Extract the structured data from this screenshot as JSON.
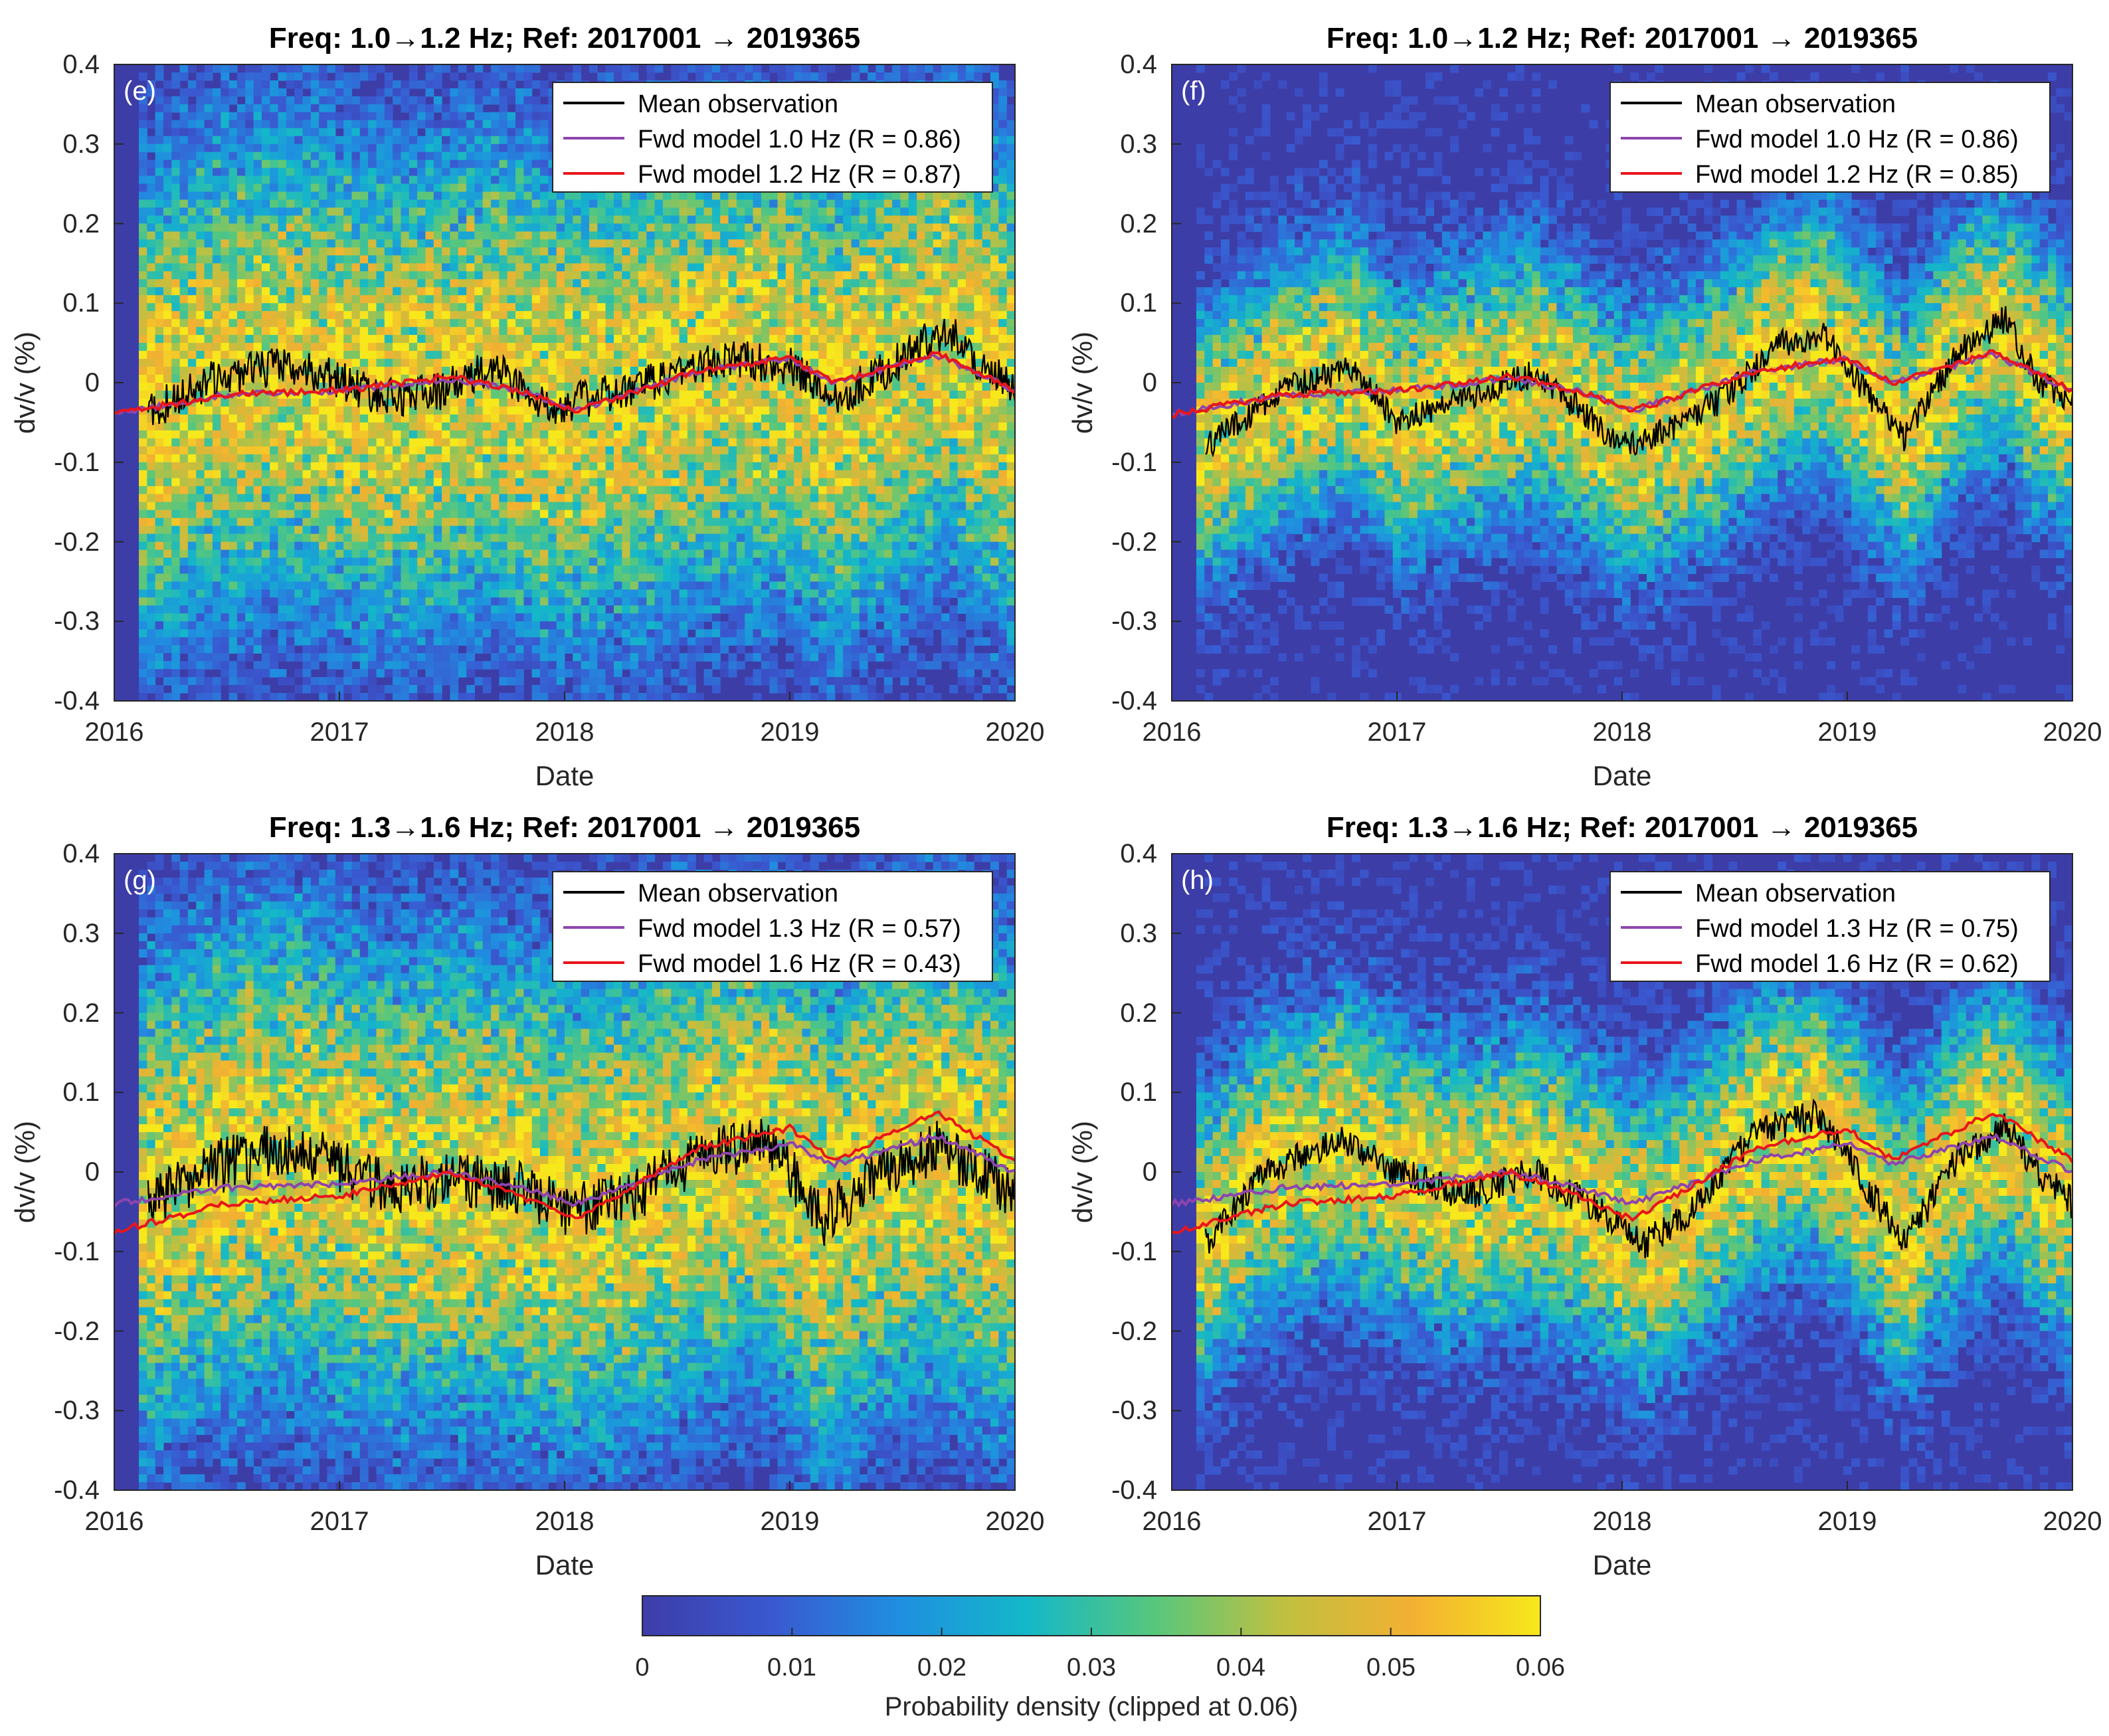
{
  "panels": [
    {
      "id": "e",
      "label": "(e)",
      "title": "Freq: 1.0→1.2 Hz; Ref: 2017001 → 2019365",
      "xlabel": "Date",
      "ylabel": "dv/v (%)",
      "legend": [
        {
          "label": "Mean observation",
          "color": "#000000"
        },
        {
          "label": "Fwd model 1.0 Hz (R = 0.86)",
          "color": "#8e44ad"
        },
        {
          "label": "Fwd model 1.2 Hz (R = 0.87)",
          "color": "#e8151b"
        }
      ]
    },
    {
      "id": "f",
      "label": "(f)",
      "title": "Freq: 1.0→1.2 Hz; Ref: 2017001 → 2019365",
      "xlabel": "Date",
      "ylabel": "dv/v (%)",
      "legend": [
        {
          "label": "Mean observation",
          "color": "#000000"
        },
        {
          "label": "Fwd model 1.0 Hz (R = 0.86)",
          "color": "#8e44ad"
        },
        {
          "label": "Fwd model 1.2 Hz (R = 0.85)",
          "color": "#e8151b"
        }
      ]
    },
    {
      "id": "g",
      "label": "(g)",
      "title": "Freq: 1.3→1.6 Hz; Ref: 2017001 → 2019365",
      "xlabel": "Date",
      "ylabel": "dv/v (%)",
      "legend": [
        {
          "label": "Mean observation",
          "color": "#000000"
        },
        {
          "label": "Fwd model 1.3 Hz (R = 0.57)",
          "color": "#8e44ad"
        },
        {
          "label": "Fwd model 1.6 Hz (R = 0.43)",
          "color": "#e8151b"
        }
      ]
    },
    {
      "id": "h",
      "label": "(h)",
      "title": "Freq: 1.3→1.6 Hz; Ref: 2017001 → 2019365",
      "xlabel": "Date",
      "ylabel": "dv/v (%)",
      "legend": [
        {
          "label": "Mean observation",
          "color": "#000000"
        },
        {
          "label": "Fwd model 1.3 Hz (R = 0.75)",
          "color": "#8e44ad"
        },
        {
          "label": "Fwd model 1.6 Hz (R = 0.62)",
          "color": "#e8151b"
        }
      ]
    }
  ],
  "colorbar": {
    "label": "Probability density (clipped at 0.06)",
    "ticks": [
      "0",
      "0.01",
      "0.02",
      "0.03",
      "0.04",
      "0.05",
      "0.06"
    ],
    "range": [
      0,
      0.06
    ],
    "colors": [
      "#3d3da8",
      "#3a58d0",
      "#1f8fe0",
      "#14b8c8",
      "#58c77c",
      "#c0c040",
      "#f3b032",
      "#f7e81c"
    ]
  },
  "chart_data": [
    {
      "type": "heatmap",
      "panel": "e",
      "xticks": [
        "2016",
        "2017",
        "2018",
        "2019",
        "2020"
      ],
      "xlim": [
        2016,
        2020
      ],
      "yticks": [
        "0.4",
        "0.3",
        "0.2",
        "0.1",
        "0",
        "-0.1",
        "-0.2",
        "-0.3",
        "-0.4"
      ],
      "ylim": [
        -0.4,
        0.4
      ],
      "density_spread": 0.2,
      "noise": 0.025,
      "series": [
        {
          "name": "Mean observation",
          "kind": "obs",
          "t": [
            2016.15,
            2016.4,
            2016.7,
            2016.95,
            2017.2,
            2017.45,
            2017.7,
            2017.9,
            2018.1,
            2018.3,
            2018.55,
            2018.8,
            2019.0,
            2019.2,
            2019.45,
            2019.7,
            2019.85,
            2020.0
          ],
          "v": [
            -0.04,
            0.0,
            0.02,
            0.01,
            -0.02,
            -0.01,
            0.02,
            -0.03,
            -0.02,
            -0.01,
            0.02,
            0.03,
            0.02,
            -0.02,
            0.02,
            0.07,
            0.02,
            -0.01
          ]
        },
        {
          "name": "Fwd model 1.0 Hz",
          "kind": "model",
          "t": [
            2016.0,
            2016.5,
            2017.0,
            2017.5,
            2017.8,
            2018.05,
            2018.6,
            2019.0,
            2019.2,
            2019.65,
            2020.0
          ],
          "v": [
            -0.04,
            -0.015,
            -0.01,
            0.005,
            -0.01,
            -0.035,
            0.015,
            0.03,
            0.0,
            0.035,
            -0.01
          ]
        },
        {
          "name": "Fwd model 1.2 Hz",
          "kind": "model",
          "t": [
            2016.0,
            2016.5,
            2017.0,
            2017.5,
            2017.8,
            2018.05,
            2018.6,
            2019.0,
            2019.2,
            2019.65,
            2020.0
          ],
          "v": [
            -0.04,
            -0.015,
            -0.01,
            0.008,
            -0.01,
            -0.035,
            0.015,
            0.03,
            0.0,
            0.038,
            -0.01
          ]
        }
      ]
    },
    {
      "type": "heatmap",
      "panel": "f",
      "xticks": [
        "2016",
        "2017",
        "2018",
        "2019",
        "2020"
      ],
      "xlim": [
        2016,
        2020
      ],
      "yticks": [
        "0.4",
        "0.3",
        "0.2",
        "0.1",
        "0",
        "-0.1",
        "-0.2",
        "-0.3",
        "-0.4"
      ],
      "ylim": [
        -0.4,
        0.4
      ],
      "density_spread": 0.11,
      "noise": 0.018,
      "series": [
        {
          "name": "Mean observation",
          "kind": "obs",
          "t": [
            2016.15,
            2016.5,
            2016.8,
            2017.0,
            2017.3,
            2017.6,
            2017.8,
            2018.0,
            2018.2,
            2018.45,
            2018.7,
            2018.9,
            2019.1,
            2019.25,
            2019.5,
            2019.7,
            2019.85,
            2020.0
          ],
          "v": [
            -0.08,
            -0.01,
            0.02,
            -0.05,
            -0.02,
            0.01,
            -0.03,
            -0.08,
            -0.06,
            -0.02,
            0.05,
            0.06,
            -0.02,
            -0.07,
            0.04,
            0.08,
            0.0,
            -0.02
          ]
        },
        {
          "name": "Fwd model 1.0 Hz",
          "kind": "model",
          "t": [
            2016.0,
            2016.5,
            2017.0,
            2017.5,
            2017.8,
            2018.05,
            2018.6,
            2019.0,
            2019.2,
            2019.65,
            2020.0
          ],
          "v": [
            -0.04,
            -0.015,
            -0.01,
            0.005,
            -0.01,
            -0.035,
            0.015,
            0.03,
            0.0,
            0.035,
            -0.01
          ]
        },
        {
          "name": "Fwd model 1.2 Hz",
          "kind": "model",
          "t": [
            2016.0,
            2016.5,
            2017.0,
            2017.5,
            2017.8,
            2018.05,
            2018.6,
            2019.0,
            2019.2,
            2019.65,
            2020.0
          ],
          "v": [
            -0.04,
            -0.015,
            -0.01,
            0.008,
            -0.01,
            -0.035,
            0.015,
            0.03,
            0.0,
            0.038,
            -0.01
          ]
        }
      ]
    },
    {
      "type": "heatmap",
      "panel": "g",
      "xticks": [
        "2016",
        "2017",
        "2018",
        "2019",
        "2020"
      ],
      "xlim": [
        2016,
        2020
      ],
      "yticks": [
        "0.4",
        "0.3",
        "0.2",
        "0.1",
        "0",
        "-0.1",
        "-0.2",
        "-0.3",
        "-0.4"
      ],
      "ylim": [
        -0.4,
        0.4
      ],
      "density_spread": 0.2,
      "noise": 0.035,
      "series": [
        {
          "name": "Mean observation",
          "kind": "obs",
          "t": [
            2016.15,
            2016.4,
            2016.7,
            2016.9,
            2017.2,
            2017.5,
            2017.8,
            2018.0,
            2018.3,
            2018.6,
            2018.9,
            2019.15,
            2019.4,
            2019.65,
            2019.85,
            2020.0
          ],
          "v": [
            -0.04,
            0.0,
            0.03,
            0.02,
            -0.02,
            -0.01,
            -0.02,
            -0.05,
            -0.03,
            0.02,
            0.04,
            -0.06,
            0.0,
            0.03,
            0.0,
            -0.03
          ]
        },
        {
          "name": "Fwd model 1.3 Hz",
          "kind": "model",
          "t": [
            2016.0,
            2016.5,
            2017.0,
            2017.5,
            2017.8,
            2018.05,
            2018.6,
            2019.0,
            2019.2,
            2019.65,
            2020.0
          ],
          "v": [
            -0.04,
            -0.02,
            -0.015,
            0.0,
            -0.02,
            -0.04,
            0.015,
            0.035,
            0.01,
            0.045,
            0.0
          ]
        },
        {
          "name": "Fwd model 1.6 Hz",
          "kind": "model",
          "t": [
            2016.0,
            2016.5,
            2017.0,
            2017.5,
            2017.8,
            2018.05,
            2018.6,
            2019.0,
            2019.2,
            2019.65,
            2020.0
          ],
          "v": [
            -0.075,
            -0.04,
            -0.03,
            0.0,
            -0.03,
            -0.06,
            0.03,
            0.055,
            0.015,
            0.075,
            0.015
          ]
        }
      ]
    },
    {
      "type": "heatmap",
      "panel": "h",
      "xticks": [
        "2016",
        "2017",
        "2018",
        "2019",
        "2020"
      ],
      "xlim": [
        2016,
        2020
      ],
      "yticks": [
        "0.4",
        "0.3",
        "0.2",
        "0.1",
        "0",
        "-0.1",
        "-0.2",
        "-0.3",
        "-0.4"
      ],
      "ylim": [
        -0.4,
        0.4
      ],
      "density_spread": 0.12,
      "noise": 0.02,
      "series": [
        {
          "name": "Mean observation",
          "kind": "obs",
          "t": [
            2016.15,
            2016.4,
            2016.75,
            2017.0,
            2017.3,
            2017.6,
            2017.85,
            2018.1,
            2018.3,
            2018.6,
            2018.85,
            2019.0,
            2019.25,
            2019.5,
            2019.7,
            2019.85,
            2020.0
          ],
          "v": [
            -0.09,
            0.0,
            0.04,
            0.0,
            -0.03,
            0.0,
            -0.04,
            -0.09,
            -0.05,
            0.05,
            0.07,
            0.02,
            -0.09,
            0.02,
            0.06,
            0.0,
            -0.04
          ]
        },
        {
          "name": "Fwd model 1.3 Hz",
          "kind": "model",
          "t": [
            2016.0,
            2016.5,
            2017.0,
            2017.5,
            2017.8,
            2018.05,
            2018.6,
            2019.0,
            2019.2,
            2019.65,
            2020.0
          ],
          "v": [
            -0.04,
            -0.02,
            -0.015,
            0.0,
            -0.02,
            -0.04,
            0.015,
            0.035,
            0.01,
            0.045,
            0.0
          ]
        },
        {
          "name": "Fwd model 1.6 Hz",
          "kind": "model",
          "t": [
            2016.0,
            2016.5,
            2017.0,
            2017.5,
            2017.8,
            2018.05,
            2018.6,
            2019.0,
            2019.2,
            2019.65,
            2020.0
          ],
          "v": [
            -0.075,
            -0.04,
            -0.03,
            0.0,
            -0.03,
            -0.06,
            0.03,
            0.055,
            0.015,
            0.075,
            0.015
          ]
        }
      ]
    }
  ]
}
